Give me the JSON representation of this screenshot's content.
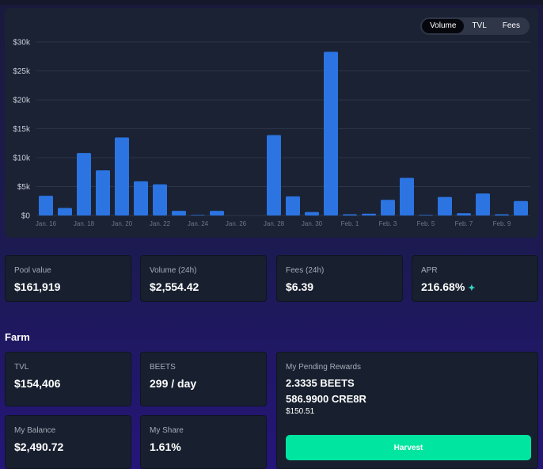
{
  "chart_toggle": {
    "options": [
      "Volume",
      "TVL",
      "Fees"
    ],
    "active": "Volume"
  },
  "chart_data": {
    "type": "bar",
    "title": "",
    "xlabel": "",
    "ylabel": "",
    "ylim": [
      0,
      30000
    ],
    "yticks": [
      0,
      5000,
      10000,
      15000,
      20000,
      25000,
      30000
    ],
    "ytick_labels": [
      "$0",
      "$5k",
      "$10k",
      "$15k",
      "$20k",
      "$25k",
      "$30k"
    ],
    "xtick_labels": [
      "Jan. 16",
      "Jan. 18",
      "Jan. 20",
      "Jan. 22",
      "Jan. 24",
      "Jan. 26",
      "Jan. 28",
      "Jan. 30",
      "Feb. 1",
      "Feb. 3",
      "Feb. 5",
      "Feb. 7",
      "Feb. 9"
    ],
    "categories": [
      "Jan. 16",
      "Jan. 17",
      "Jan. 18",
      "Jan. 19",
      "Jan. 20",
      "Jan. 21",
      "Jan. 22",
      "Jan. 23",
      "Jan. 24",
      "Jan. 25",
      "Jan. 26",
      "Jan. 27",
      "Jan. 28",
      "Jan. 29",
      "Jan. 30",
      "Jan. 31",
      "Feb. 1",
      "Feb. 2",
      "Feb. 3",
      "Feb. 4",
      "Feb. 5",
      "Feb. 6",
      "Feb. 7",
      "Feb. 8",
      "Feb. 9",
      "Feb. 10"
    ],
    "values": [
      3400,
      1300,
      10800,
      7800,
      13500,
      5900,
      5400,
      800,
      100,
      800,
      0,
      0,
      13900,
      3300,
      600,
      28300,
      200,
      300,
      2700,
      6500,
      100,
      3200,
      400,
      3800,
      200,
      2500
    ],
    "grid": true,
    "bar_color": "#2b74e2"
  },
  "pool_stats": [
    {
      "label": "Pool value",
      "value": "$161,919"
    },
    {
      "label": "Volume (24h)",
      "value": "$2,554.42"
    },
    {
      "label": "Fees (24h)",
      "value": "$6.39"
    },
    {
      "label": "APR",
      "value": "216.68%"
    }
  ],
  "farm": {
    "title": "Farm",
    "tvl": {
      "label": "TVL",
      "value": "$154,406"
    },
    "beets": {
      "label": "BEETS",
      "value": "299 / day"
    },
    "my_balance": {
      "label": "My Balance",
      "value": "$2,490.72"
    },
    "my_share": {
      "label": "My Share",
      "value": "1.61%"
    },
    "rewards": {
      "label": "My Pending Rewards",
      "line1": "2.3335 BEETS",
      "line2": "586.9900 CRE8R",
      "usd": "$150.51",
      "button": "Harvest"
    }
  },
  "icons": {
    "apr": "sparkles-icon"
  },
  "colors": {
    "accent": "#00e5a0",
    "bar": "#2b74e2",
    "sparkle": "#35d8c4"
  }
}
